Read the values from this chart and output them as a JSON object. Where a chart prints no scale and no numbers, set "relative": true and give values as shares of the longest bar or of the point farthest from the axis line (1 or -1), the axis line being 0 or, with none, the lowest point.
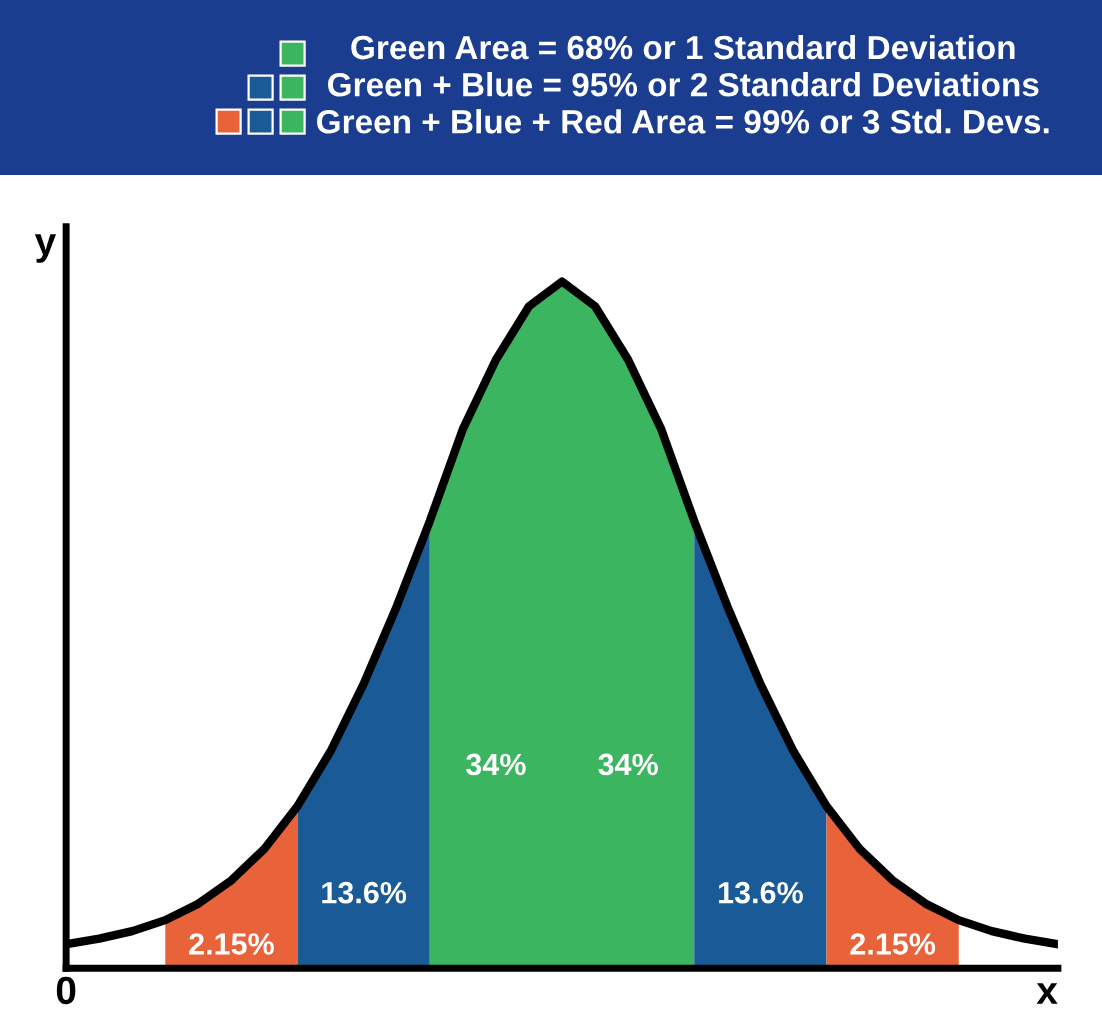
{
  "chart_data": {
    "type": "area",
    "relative": true,
    "xlabel": "x",
    "ylabel": "y",
    "title": "Green Area = 68% or 1 Standard Deviation\nGreen + Blue = 95% or 2 Standard Deviations\nGreen + Blue + Red Area = 99% or 3 Std. Devs.",
    "categories": [
      null,
      null,
      null,
      null,
      null,
      null,
      null,
      null,
      null,
      null,
      null,
      null,
      null,
      null,
      null,
      null,
      null,
      null,
      null,
      null,
      null,
      null,
      null,
      null,
      null,
      null,
      null,
      null,
      null,
      null,
      null
    ],
    "series": [
      {
        "name": "2.15%",
        "color": "#e8623a",
        "values": [
          null,
          null,
          null,
          0.07,
          0.094,
          0.128,
          0.174,
          0.236,
          null,
          null,
          null,
          null,
          null,
          null,
          null,
          null,
          null,
          null,
          null,
          null,
          null,
          null,
          null,
          null,
          null,
          null,
          null,
          null,
          null,
          null,
          null
        ]
      },
      {
        "name": "13.6%",
        "color": "#1a5a96",
        "values": [
          null,
          null,
          null,
          null,
          null,
          null,
          null,
          0.236,
          0.316,
          0.414,
          0.527,
          0.651,
          null,
          null,
          null,
          null,
          null,
          null,
          null,
          null,
          null,
          null,
          null,
          null,
          null,
          null,
          null,
          null,
          null,
          null,
          null
        ]
      },
      {
        "name": "34%",
        "color": "#3cb560",
        "values": [
          null,
          null,
          null,
          null,
          null,
          null,
          null,
          null,
          null,
          null,
          null,
          0.651,
          0.785,
          0.886,
          0.964,
          1.0,
          null,
          null,
          null,
          null,
          null,
          null,
          null,
          null,
          null,
          null,
          null,
          null,
          null,
          null,
          null
        ]
      },
      {
        "name": "34%",
        "color": "#3cb560",
        "values": [
          null,
          null,
          null,
          null,
          null,
          null,
          null,
          null,
          null,
          null,
          null,
          null,
          null,
          null,
          null,
          1.0,
          0.964,
          0.886,
          0.785,
          0.651,
          null,
          null,
          null,
          null,
          null,
          null,
          null,
          null,
          null,
          null,
          null
        ]
      },
      {
        "name": "13.6%",
        "color": "#1a5a96",
        "values": [
          null,
          null,
          null,
          null,
          null,
          null,
          null,
          null,
          null,
          null,
          null,
          null,
          null,
          null,
          null,
          null,
          null,
          null,
          null,
          0.651,
          0.527,
          0.414,
          0.316,
          0.236,
          null,
          null,
          null,
          null,
          null,
          null,
          null
        ]
      },
      {
        "name": "2.15%",
        "color": "#e8623a",
        "values": [
          null,
          null,
          null,
          null,
          null,
          null,
          null,
          null,
          null,
          null,
          null,
          null,
          null,
          null,
          null,
          null,
          null,
          null,
          null,
          null,
          null,
          null,
          null,
          0.236,
          0.174,
          0.128,
          0.094,
          0.07,
          null,
          null,
          null
        ]
      },
      {
        "type": "line",
        "color": "#000000",
        "values": [
          0.035,
          0.043,
          0.054,
          0.07,
          0.094,
          0.128,
          0.174,
          0.236,
          0.316,
          0.414,
          0.527,
          0.651,
          0.785,
          0.886,
          0.964,
          1.0,
          0.964,
          0.886,
          0.785,
          0.651,
          0.527,
          0.414,
          0.316,
          0.236,
          0.174,
          0.128,
          0.094,
          0.07,
          0.054,
          0.043,
          0.035
        ]
      }
    ],
    "annotations": [
      "0"
    ]
  }
}
